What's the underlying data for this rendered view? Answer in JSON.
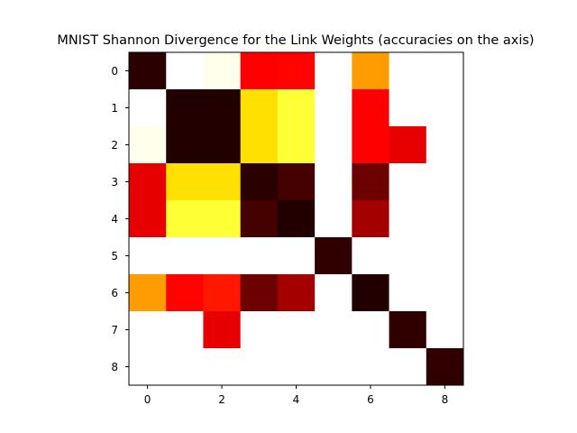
{
  "chart_data": {
    "type": "heatmap",
    "title": "MNIST Shannon Divergence for the Link Weights (accuracies on the axis)",
    "xlabel": "",
    "ylabel": "",
    "x_ticks": [
      "0",
      "2",
      "4",
      "6",
      "8"
    ],
    "y_ticks": [
      "0",
      "1",
      "2",
      "3",
      "4",
      "5",
      "6",
      "7",
      "8"
    ],
    "colormap": "hot",
    "rows": 9,
    "cols": 9,
    "grid": false,
    "values": [
      [
        0.02,
        1.0,
        0.98,
        0.36,
        0.37,
        1.0,
        0.6,
        1.0,
        1.0
      ],
      [
        1.0,
        0.01,
        0.01,
        0.7,
        0.8,
        1.0,
        0.35,
        1.0,
        1.0
      ],
      [
        0.98,
        0.01,
        0.01,
        0.7,
        0.8,
        1.0,
        0.35,
        0.3,
        1.0
      ],
      [
        0.3,
        0.7,
        0.7,
        0.02,
        0.06,
        1.0,
        0.12,
        1.0,
        1.0
      ],
      [
        0.3,
        0.8,
        0.8,
        0.06,
        0.01,
        1.0,
        0.2,
        1.0,
        1.0
      ],
      [
        1.0,
        1.0,
        1.0,
        1.0,
        1.0,
        0.03,
        1.0,
        1.0,
        1.0
      ],
      [
        0.6,
        0.37,
        0.4,
        0.12,
        0.2,
        1.0,
        0.01,
        1.0,
        1.0
      ],
      [
        1.0,
        1.0,
        0.3,
        1.0,
        1.0,
        1.0,
        1.0,
        0.03,
        1.0
      ],
      [
        1.0,
        1.0,
        1.0,
        1.0,
        1.0,
        1.0,
        1.0,
        1.0,
        0.03
      ]
    ]
  }
}
